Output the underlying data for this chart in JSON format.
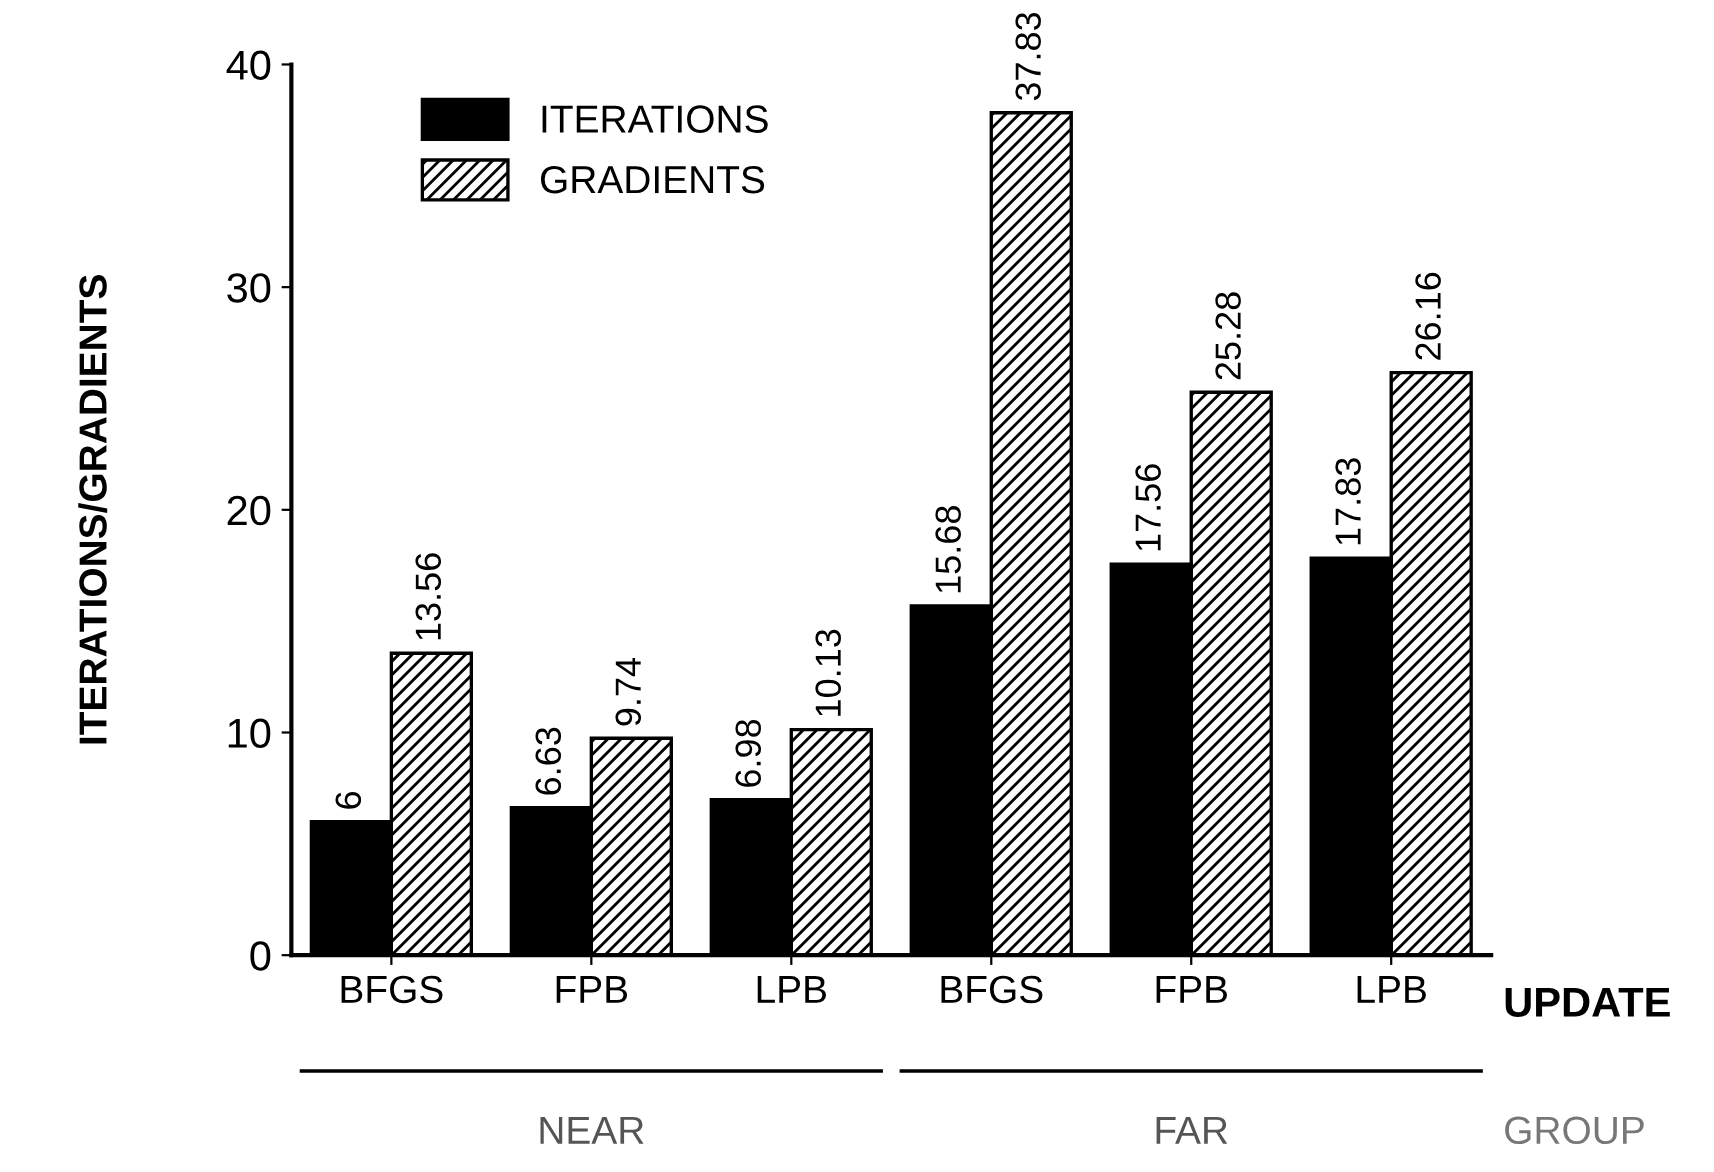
{
  "chart_data": {
    "type": "bar",
    "ylabel": "ITERATIONS/GRADIENTS",
    "xlabel": "UPDATE",
    "categories": [
      "BFGS",
      "FPB",
      "LPB",
      "BFGS",
      "FPB",
      "LPB"
    ],
    "series": [
      {
        "name": "ITERATIONS",
        "color": "#000000",
        "values": [
          6,
          6.63,
          6.98,
          15.68,
          17.56,
          17.83
        ]
      },
      {
        "name": "GRADIENTS",
        "color": "#000000",
        "values": [
          13.56,
          9.74,
          10.13,
          37.83,
          25.28,
          26.16
        ]
      }
    ],
    "ylim": [
      0,
      40
    ],
    "yticks": [
      0,
      10,
      20,
      30,
      40
    ],
    "data_labels": true,
    "legend": "top left",
    "grid": false,
    "annotations": [
      "NEAR",
      "FAR",
      "GROUP"
    ]
  }
}
